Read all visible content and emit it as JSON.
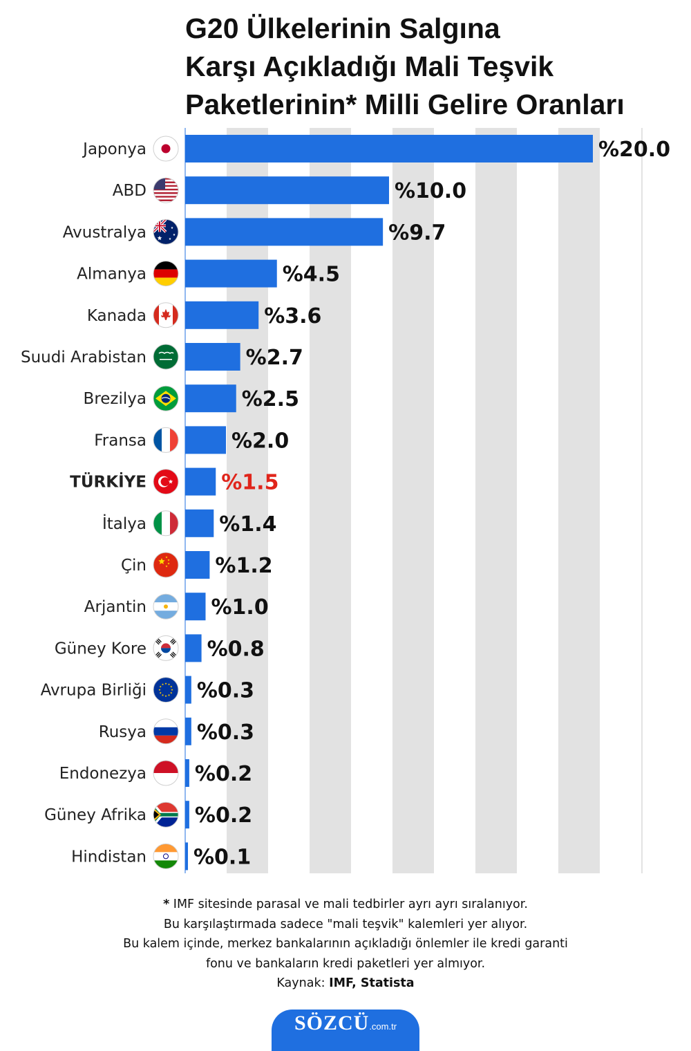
{
  "title": {
    "line1": "G20 Ülkelerinin Salgına",
    "line2": "Karşı Açıkladığı Mali Teşvik",
    "line3": "Paketlerinin* Milli Gelire Oranları"
  },
  "chart_data": {
    "type": "bar",
    "orientation": "horizontal",
    "title": "G20 Ülkelerinin Salgına Karşı Açıkladığı Mali Teşvik Paketlerinin* Milli Gelire Oranları",
    "value_prefix": "%",
    "xlim": [
      0,
      22
    ],
    "categories": [
      "Japonya",
      "ABD",
      "Avustralya",
      "Almanya",
      "Kanada",
      "Suudi Arabistan",
      "Brezilya",
      "Fransa",
      "TÜRKİYE",
      "İtalya",
      "Çin",
      "Arjantin",
      "Güney Kore",
      "Avrupa Birliği",
      "Rusya",
      "Endonezya",
      "Güney Afrika",
      "Hindistan"
    ],
    "values": [
      20.0,
      10.0,
      9.7,
      4.5,
      3.6,
      2.7,
      2.5,
      2.0,
      1.5,
      1.4,
      1.2,
      1.0,
      0.8,
      0.3,
      0.3,
      0.2,
      0.2,
      0.1
    ],
    "value_labels": [
      "%20.0",
      "%10.0",
      "%9.7",
      "%4.5",
      "%3.6",
      "%2.7",
      "%2.5",
      "%2.0",
      "%1.5",
      "%1.4",
      "%1.2",
      "%1.0",
      "%0.8",
      "%0.3",
      "%0.3",
      "%0.2",
      "%0.2",
      "%0.1"
    ],
    "flags": [
      "japan-flag-icon",
      "usa-flag-icon",
      "australia-flag-icon",
      "germany-flag-icon",
      "canada-flag-icon",
      "saudi-arabia-flag-icon",
      "brazil-flag-icon",
      "france-flag-icon",
      "turkey-flag-icon",
      "italy-flag-icon",
      "china-flag-icon",
      "argentina-flag-icon",
      "south-korea-flag-icon",
      "eu-flag-icon",
      "russia-flag-icon",
      "indonesia-flag-icon",
      "south-africa-flag-icon",
      "india-flag-icon"
    ],
    "highlight_category": "TÜRKİYE",
    "bar_color": "#1f6fe0",
    "highlight_label_color": "#e0251b",
    "grid": "alternating vertical bands",
    "band_color": "#e2e2e2"
  },
  "footnote": {
    "line1_mark": "*",
    "line1_text": " IMF sitesinde parasal ve mali tedbirler ayrı ayrı sıralanıyor.",
    "line2": "Bu karşılaştırmada sadece \"mali teşvik\" kalemleri yer alıyor.",
    "line3": "Bu kalem içinde, merkez bankalarının açıkladığı önlemler ile kredi garanti",
    "line4": "fonu ve bankaların kredi paketleri yer almıyor.",
    "source_label": "Kaynak: ",
    "source_value": "IMF, Statista"
  },
  "logo": {
    "main": "SÖZCÜ",
    "sub": ".com.tr"
  }
}
